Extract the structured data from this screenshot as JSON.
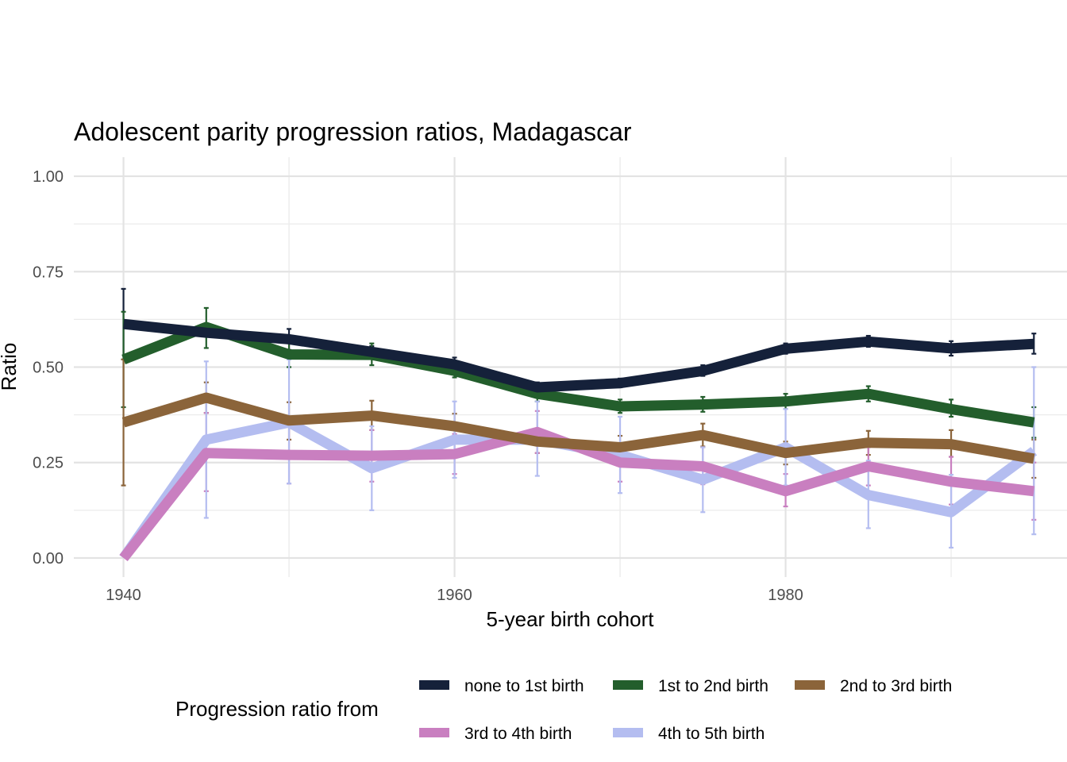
{
  "chart_data": {
    "type": "line",
    "title": "Adolescent parity progression ratios,  Madagascar",
    "xlabel": "5-year birth cohort",
    "ylabel": "Ratio",
    "xlim": [
      1937,
      1997
    ],
    "ylim": [
      -0.05,
      1.05
    ],
    "x_ticks": [
      1940,
      1960,
      1980
    ],
    "x_tick_labels": [
      "1940",
      "1960",
      "1980"
    ],
    "y_ticks": [
      0,
      0.25,
      0.5,
      0.75,
      1.0
    ],
    "y_tick_labels": [
      "0.00",
      "0.25",
      "0.50",
      "0.75",
      "1.00"
    ],
    "grid": true,
    "legend_title": "Progression ratio from",
    "legend_position": "bottom",
    "x": [
      1940,
      1945,
      1950,
      1955,
      1960,
      1965,
      1970,
      1975,
      1980,
      1985,
      1990,
      1995
    ],
    "series": [
      {
        "name": "none to 1st birth",
        "color": "#15213a",
        "values": [
          0.613,
          0.59,
          0.573,
          0.54,
          0.507,
          0.447,
          0.458,
          0.49,
          0.548,
          0.567,
          0.549,
          0.561
        ],
        "lower": [
          0.52,
          0.58,
          0.545,
          0.525,
          0.49,
          0.435,
          0.447,
          0.477,
          0.535,
          0.553,
          0.53,
          0.535
        ],
        "upper": [
          0.705,
          0.6,
          0.6,
          0.555,
          0.525,
          0.46,
          0.47,
          0.505,
          0.562,
          0.582,
          0.568,
          0.588
        ]
      },
      {
        "name": "1st to 2nd birth",
        "color": "#235e2c",
        "values": [
          0.52,
          0.605,
          0.533,
          0.532,
          0.49,
          0.43,
          0.397,
          0.402,
          0.41,
          0.43,
          0.39,
          0.355
        ],
        "lower": [
          0.395,
          0.55,
          0.5,
          0.505,
          0.473,
          0.41,
          0.38,
          0.383,
          0.39,
          0.41,
          0.37,
          0.315
        ],
        "upper": [
          0.645,
          0.655,
          0.565,
          0.562,
          0.505,
          0.452,
          0.415,
          0.422,
          0.43,
          0.45,
          0.415,
          0.395
        ]
      },
      {
        "name": "2nd to 3rd birth",
        "color": "#8b643a",
        "values": [
          0.355,
          0.42,
          0.36,
          0.373,
          0.345,
          0.305,
          0.29,
          0.322,
          0.275,
          0.302,
          0.298,
          0.26
        ],
        "lower": [
          0.19,
          0.38,
          0.31,
          0.335,
          0.31,
          0.275,
          0.26,
          0.292,
          0.245,
          0.27,
          0.265,
          0.21
        ],
        "upper": [
          0.52,
          0.46,
          0.408,
          0.412,
          0.378,
          0.335,
          0.32,
          0.352,
          0.305,
          0.333,
          0.335,
          0.31
        ]
      },
      {
        "name": "3rd to 4th birth",
        "color": "#c97fc0",
        "values": [
          0.0,
          0.275,
          0.27,
          0.268,
          0.272,
          0.33,
          0.25,
          0.24,
          0.175,
          0.24,
          0.2,
          0.175
        ],
        "lower": [
          0.0,
          0.175,
          0.195,
          0.2,
          0.22,
          0.275,
          0.2,
          0.193,
          0.135,
          0.19,
          0.14,
          0.1
        ],
        "upper": [
          0.0,
          0.38,
          0.345,
          0.335,
          0.325,
          0.385,
          0.3,
          0.29,
          0.22,
          0.29,
          0.265,
          0.25
        ]
      },
      {
        "name": "4th to 5th birth",
        "color": "#b4bdf0",
        "values": [
          0.0,
          0.31,
          0.355,
          0.235,
          0.31,
          0.31,
          0.27,
          0.205,
          0.29,
          0.165,
          0.12,
          0.28
        ],
        "lower": [
          0.0,
          0.105,
          0.195,
          0.125,
          0.21,
          0.215,
          0.17,
          0.12,
          0.19,
          0.078,
          0.027,
          0.062
        ],
        "upper": [
          0.0,
          0.515,
          0.52,
          0.345,
          0.41,
          0.41,
          0.37,
          0.29,
          0.39,
          0.255,
          0.218,
          0.5
        ]
      }
    ]
  }
}
